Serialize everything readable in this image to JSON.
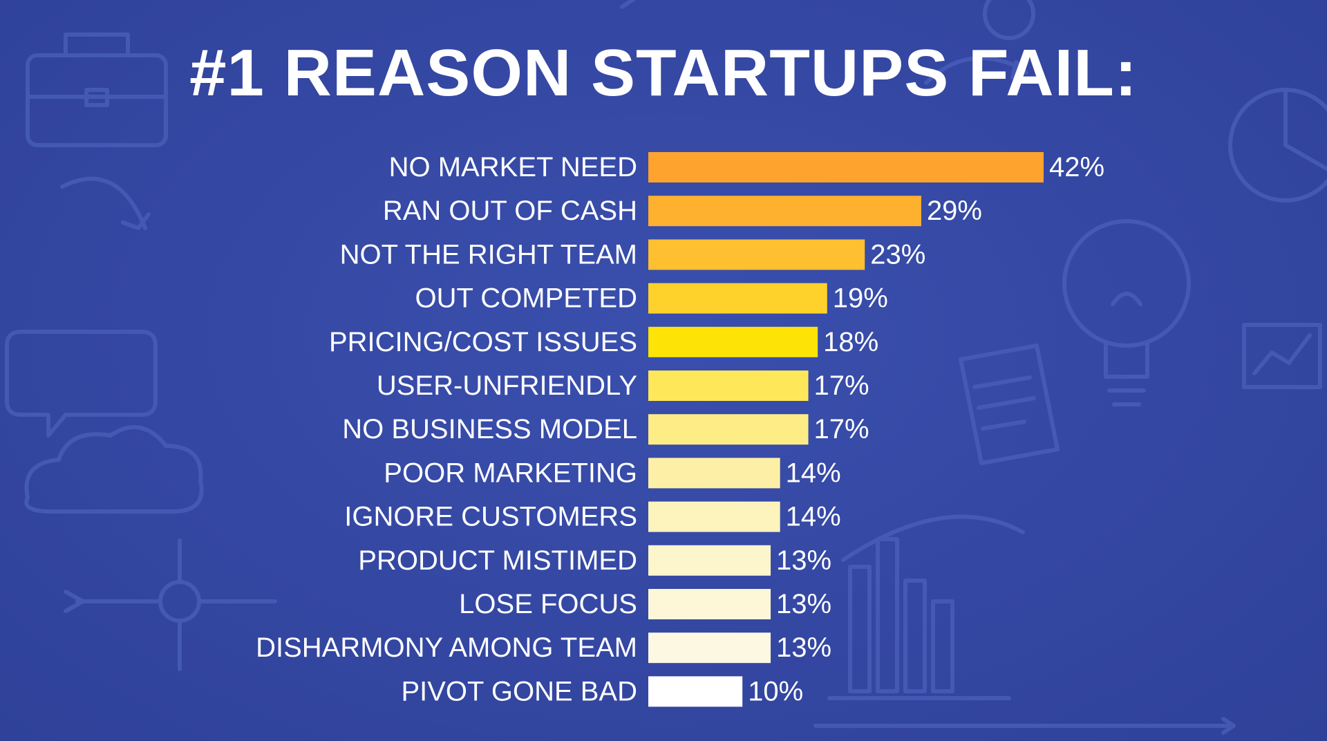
{
  "title": "#1 REASON STARTUPS FAIL:",
  "chart_data": {
    "type": "bar",
    "orientation": "horizontal",
    "categories": [
      "NO MARKET NEED",
      "RAN OUT OF CASH",
      "NOT THE RIGHT TEAM",
      "OUT COMPETED",
      "PRICING/COST ISSUES",
      "USER-UNFRIENDLY",
      "NO BUSINESS MODEL",
      "POOR MARKETING",
      "IGNORE CUSTOMERS",
      "PRODUCT MISTIMED",
      "LOSE FOCUS",
      "DISHARMONY AMONG TEAM",
      "PIVOT GONE BAD"
    ],
    "values": [
      42,
      29,
      23,
      19,
      18,
      17,
      17,
      14,
      14,
      13,
      13,
      13,
      10
    ],
    "value_labels": [
      "42%",
      "29%",
      "23%",
      "19%",
      "18%",
      "17%",
      "17%",
      "14%",
      "14%",
      "13%",
      "13%",
      "13%",
      "10%"
    ],
    "bar_colors": [
      "#fea32e",
      "#feb02f",
      "#febf30",
      "#fed22a",
      "#fee307",
      "#fee85a",
      "#feed86",
      "#fdf0a6",
      "#fdf3bc",
      "#fdf5cb",
      "#fdf7d7",
      "#fdf8e2",
      "#ffffff"
    ],
    "xlim": [
      0,
      42
    ],
    "grid": false,
    "legend": "none"
  },
  "colors": {
    "background": "#3547a1",
    "text": "#ffffff",
    "doodle": "#4a5eb8"
  }
}
